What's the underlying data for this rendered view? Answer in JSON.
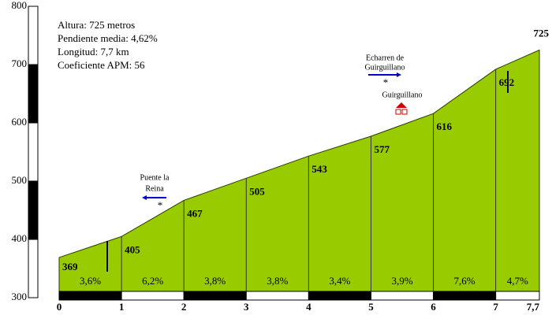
{
  "chart_data": {
    "type": "area",
    "info": [
      "Altura: 725 metros",
      "Pendiente media: 4,62%",
      "Longitud: 7,7 km",
      "Coeficiente APM: 56"
    ],
    "x": [
      0,
      1,
      2,
      3,
      4,
      5,
      6,
      7,
      7.7
    ],
    "values": [
      369,
      405,
      467,
      505,
      543,
      577,
      616,
      692,
      725
    ],
    "color": "#99cc00",
    "gradients": {
      "values": [
        3.6,
        6.2,
        3.8,
        3.8,
        3.4,
        3.9,
        7.6,
        4.7
      ],
      "value_labels": [
        "3,6%",
        "6,2%",
        "3,8%",
        "3,8%",
        "3,4%",
        "3,9%",
        "7,6%",
        "4,7%"
      ]
    },
    "xlim": [
      0,
      7.7
    ],
    "xticks": [
      0,
      1,
      2,
      3,
      4,
      5,
      6,
      7,
      {
        "value": 7.7,
        "label": "7,7"
      }
    ],
    "ylim": [
      300,
      800
    ],
    "yticks": [
      300,
      400,
      500,
      600,
      700,
      800
    ],
    "annotations": {
      "puente": [
        "Puente la",
        "Reina"
      ],
      "echarren": [
        "Echarren de",
        "Guirguillano"
      ],
      "guirguillano": "Guirguillano"
    }
  }
}
